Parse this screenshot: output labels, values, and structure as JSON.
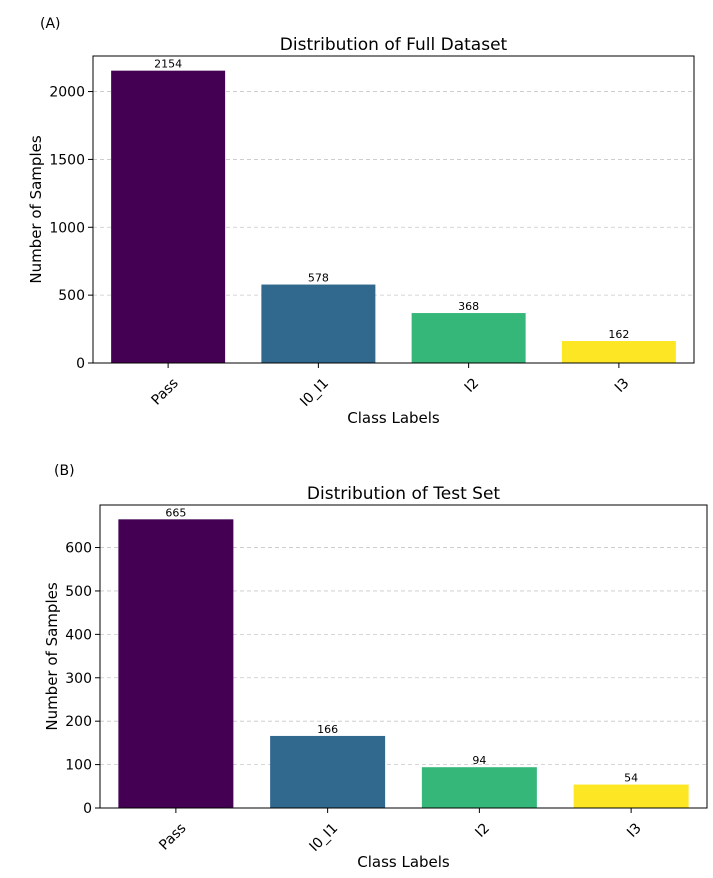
{
  "colors": {
    "pass": "#440154",
    "io_i1": "#31688e",
    "i2": "#35b779",
    "i3": "#fde725",
    "grid": "#c8c8c8"
  },
  "chart_data": [
    {
      "panel_label": "(A)",
      "type": "bar",
      "title": "Distribution of Full Dataset",
      "xlabel": "Class Labels",
      "ylabel": "Number of Samples",
      "categories": [
        "Pass",
        "I0_I1",
        "I2",
        "I3"
      ],
      "values": [
        2154,
        578,
        368,
        162
      ],
      "ylim": [
        0,
        2262
      ],
      "yticks": [
        0,
        500,
        1000,
        1500,
        2000
      ],
      "grid": "y-dashed",
      "bar_colors": [
        "#440154",
        "#31688e",
        "#35b779",
        "#fde725"
      ]
    },
    {
      "panel_label": "(B)",
      "type": "bar",
      "title": "Distribution of Test Set",
      "xlabel": "Class Labels",
      "ylabel": "Number of Samples",
      "categories": [
        "Pass",
        "I0_I1",
        "I2",
        "I3"
      ],
      "values": [
        665,
        166,
        94,
        54
      ],
      "ylim": [
        0,
        698
      ],
      "yticks": [
        0,
        100,
        200,
        300,
        400,
        500,
        600
      ],
      "grid": "y-dashed",
      "bar_colors": [
        "#440154",
        "#31688e",
        "#35b779",
        "#fde725"
      ]
    }
  ]
}
